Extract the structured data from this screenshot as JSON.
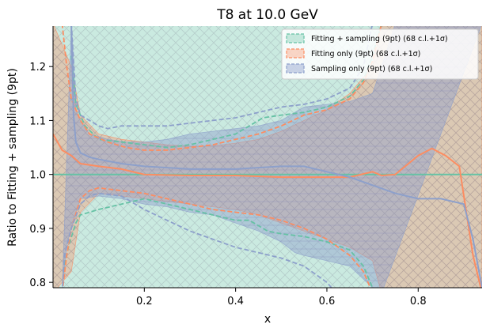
{
  "chart_data": {
    "type": "line",
    "title": "T8 at 10.0 GeV",
    "xlabel": "x",
    "ylabel": "Ratio to Fitting + sampling (9pt)",
    "xlim": [
      0.0,
      0.94
    ],
    "ylim": [
      0.79,
      1.275
    ],
    "xticks": [
      {
        "value": 0.2,
        "label": "0.2"
      },
      {
        "value": 0.4,
        "label": "0.4"
      },
      {
        "value": 0.6,
        "label": "0.6"
      },
      {
        "value": 0.8,
        "label": "0.8"
      }
    ],
    "yticks": [
      {
        "value": 0.8,
        "label": "0.8"
      },
      {
        "value": 0.9,
        "label": "0.9"
      },
      {
        "value": 1.0,
        "label": "1.0"
      },
      {
        "value": 1.1,
        "label": "1.1"
      },
      {
        "value": 1.2,
        "label": "1.2"
      }
    ],
    "grid": false,
    "legend_position": "top-right",
    "series": [
      {
        "name": "Fitting + sampling (9pt) (68 c.l.+1σ)",
        "color": "#66c2a5",
        "band_fill": "rgba(102,194,165,0.35)",
        "central": [
          [
            0.0,
            1.0
          ],
          [
            0.94,
            1.0
          ]
        ],
        "band_upper": [
          [
            0.0,
            1.28
          ],
          [
            0.94,
            1.28
          ]
        ],
        "band_lower": [
          [
            0.0,
            0.78
          ],
          [
            0.94,
            0.78
          ]
        ],
        "dashed_upper": [
          [
            0.04,
            1.22
          ],
          [
            0.05,
            1.13
          ],
          [
            0.07,
            1.09
          ],
          [
            0.1,
            1.065
          ],
          [
            0.15,
            1.06
          ],
          [
            0.2,
            1.055
          ],
          [
            0.25,
            1.05
          ],
          [
            0.3,
            1.055
          ],
          [
            0.35,
            1.065
          ],
          [
            0.4,
            1.075
          ],
          [
            0.43,
            1.09
          ],
          [
            0.46,
            1.105
          ],
          [
            0.5,
            1.11
          ],
          [
            0.55,
            1.115
          ],
          [
            0.6,
            1.125
          ],
          [
            0.65,
            1.145
          ],
          [
            0.68,
            1.175
          ],
          [
            0.7,
            1.22
          ],
          [
            0.72,
            1.28
          ]
        ],
        "dashed_lower": [
          [
            0.02,
            0.78
          ],
          [
            0.025,
            0.83
          ],
          [
            0.035,
            0.87
          ],
          [
            0.05,
            0.91
          ],
          [
            0.06,
            0.925
          ],
          [
            0.1,
            0.935
          ],
          [
            0.15,
            0.945
          ],
          [
            0.2,
            0.955
          ],
          [
            0.25,
            0.945
          ],
          [
            0.3,
            0.935
          ],
          [
            0.35,
            0.925
          ],
          [
            0.4,
            0.915
          ],
          [
            0.43,
            0.915
          ],
          [
            0.45,
            0.905
          ],
          [
            0.47,
            0.895
          ],
          [
            0.5,
            0.89
          ],
          [
            0.55,
            0.885
          ],
          [
            0.6,
            0.875
          ],
          [
            0.65,
            0.86
          ],
          [
            0.68,
            0.83
          ],
          [
            0.7,
            0.79
          ],
          [
            0.71,
            0.78
          ]
        ]
      },
      {
        "name": "Fitting only (9pt) (68 c.l.+1σ)",
        "color": "#fc8d62",
        "band_fill": "rgba(252,141,98,0.35)",
        "central": [
          [
            0.0,
            1.075
          ],
          [
            0.02,
            1.045
          ],
          [
            0.04,
            1.035
          ],
          [
            0.06,
            1.02
          ],
          [
            0.1,
            1.015
          ],
          [
            0.15,
            1.01
          ],
          [
            0.2,
            1.0
          ],
          [
            0.3,
            0.998
          ],
          [
            0.4,
            0.998
          ],
          [
            0.5,
            0.995
          ],
          [
            0.6,
            0.995
          ],
          [
            0.65,
            0.995
          ],
          [
            0.7,
            1.005
          ],
          [
            0.72,
            0.998
          ],
          [
            0.75,
            1.0
          ],
          [
            0.8,
            1.035
          ],
          [
            0.83,
            1.048
          ],
          [
            0.86,
            1.035
          ],
          [
            0.89,
            1.015
          ],
          [
            0.92,
            0.85
          ],
          [
            0.94,
            0.78
          ]
        ],
        "band_upper": [
          [
            0.0,
            1.28
          ],
          [
            0.04,
            1.2
          ],
          [
            0.06,
            1.11
          ],
          [
            0.1,
            1.075
          ],
          [
            0.15,
            1.065
          ],
          [
            0.2,
            1.06
          ],
          [
            0.25,
            1.055
          ],
          [
            0.3,
            1.052
          ],
          [
            0.35,
            1.053
          ],
          [
            0.4,
            1.058
          ],
          [
            0.45,
            1.065
          ],
          [
            0.5,
            1.08
          ],
          [
            0.55,
            1.1
          ],
          [
            0.6,
            1.12
          ],
          [
            0.65,
            1.15
          ],
          [
            0.7,
            1.2
          ],
          [
            0.72,
            1.28
          ],
          [
            0.94,
            1.28
          ]
        ],
        "band_lower": [
          [
            0.0,
            0.78
          ],
          [
            0.04,
            0.82
          ],
          [
            0.06,
            0.93
          ],
          [
            0.1,
            0.965
          ],
          [
            0.15,
            0.96
          ],
          [
            0.2,
            0.955
          ],
          [
            0.25,
            0.95
          ],
          [
            0.3,
            0.945
          ],
          [
            0.35,
            0.94
          ],
          [
            0.4,
            0.935
          ],
          [
            0.45,
            0.925
          ],
          [
            0.5,
            0.91
          ],
          [
            0.55,
            0.895
          ],
          [
            0.6,
            0.88
          ],
          [
            0.65,
            0.865
          ],
          [
            0.7,
            0.84
          ],
          [
            0.72,
            0.78
          ],
          [
            0.94,
            0.78
          ]
        ],
        "dashed_upper": [
          [
            0.02,
            1.28
          ],
          [
            0.03,
            1.2
          ],
          [
            0.04,
            1.14
          ],
          [
            0.06,
            1.1
          ],
          [
            0.08,
            1.075
          ],
          [
            0.12,
            1.06
          ],
          [
            0.16,
            1.05
          ],
          [
            0.2,
            1.045
          ],
          [
            0.25,
            1.045
          ],
          [
            0.3,
            1.05
          ],
          [
            0.35,
            1.055
          ],
          [
            0.4,
            1.065
          ],
          [
            0.45,
            1.075
          ],
          [
            0.5,
            1.09
          ],
          [
            0.55,
            1.11
          ],
          [
            0.6,
            1.12
          ],
          [
            0.65,
            1.14
          ],
          [
            0.68,
            1.17
          ],
          [
            0.7,
            1.21
          ],
          [
            0.72,
            1.28
          ]
        ],
        "dashed_lower": [
          [
            0.02,
            0.78
          ],
          [
            0.03,
            0.85
          ],
          [
            0.04,
            0.9
          ],
          [
            0.06,
            0.955
          ],
          [
            0.08,
            0.97
          ],
          [
            0.1,
            0.975
          ],
          [
            0.15,
            0.97
          ],
          [
            0.2,
            0.965
          ],
          [
            0.25,
            0.955
          ],
          [
            0.3,
            0.945
          ],
          [
            0.35,
            0.935
          ],
          [
            0.4,
            0.93
          ],
          [
            0.45,
            0.925
          ],
          [
            0.5,
            0.915
          ],
          [
            0.55,
            0.9
          ],
          [
            0.6,
            0.88
          ],
          [
            0.65,
            0.85
          ],
          [
            0.68,
            0.82
          ],
          [
            0.7,
            0.78
          ]
        ]
      },
      {
        "name": "Sampling only (9pt) (68 c.l.+1σ)",
        "color": "#8da0cb",
        "band_fill": "rgba(141,160,203,0.45)",
        "central": [
          [
            0.04,
            1.275
          ],
          [
            0.045,
            1.11
          ],
          [
            0.05,
            1.06
          ],
          [
            0.06,
            1.04
          ],
          [
            0.08,
            1.032
          ],
          [
            0.1,
            1.028
          ],
          [
            0.15,
            1.02
          ],
          [
            0.2,
            1.015
          ],
          [
            0.3,
            1.01
          ],
          [
            0.4,
            1.01
          ],
          [
            0.5,
            1.015
          ],
          [
            0.55,
            1.015
          ],
          [
            0.6,
            1.005
          ],
          [
            0.65,
            0.995
          ],
          [
            0.7,
            0.98
          ],
          [
            0.75,
            0.965
          ],
          [
            0.8,
            0.955
          ],
          [
            0.85,
            0.955
          ],
          [
            0.9,
            0.945
          ],
          [
            0.92,
            0.88
          ],
          [
            0.94,
            0.79
          ]
        ],
        "band_upper": [
          [
            0.04,
            1.28
          ],
          [
            0.05,
            1.12
          ],
          [
            0.06,
            1.1
          ],
          [
            0.08,
            1.075
          ],
          [
            0.12,
            1.065
          ],
          [
            0.16,
            1.06
          ],
          [
            0.2,
            1.06
          ],
          [
            0.25,
            1.065
          ],
          [
            0.3,
            1.075
          ],
          [
            0.35,
            1.08
          ],
          [
            0.4,
            1.085
          ],
          [
            0.45,
            1.09
          ],
          [
            0.5,
            1.1
          ],
          [
            0.55,
            1.125
          ],
          [
            0.6,
            1.13
          ],
          [
            0.65,
            1.135
          ],
          [
            0.7,
            1.15
          ],
          [
            0.72,
            1.2
          ],
          [
            0.75,
            1.28
          ],
          [
            0.94,
            1.28
          ]
        ],
        "band_lower": [
          [
            0.02,
            0.78
          ],
          [
            0.03,
            0.87
          ],
          [
            0.05,
            0.93
          ],
          [
            0.06,
            0.955
          ],
          [
            0.1,
            0.96
          ],
          [
            0.15,
            0.955
          ],
          [
            0.2,
            0.945
          ],
          [
            0.25,
            0.94
          ],
          [
            0.3,
            0.93
          ],
          [
            0.35,
            0.925
          ],
          [
            0.4,
            0.91
          ],
          [
            0.45,
            0.895
          ],
          [
            0.5,
            0.875
          ],
          [
            0.53,
            0.855
          ],
          [
            0.55,
            0.85
          ],
          [
            0.6,
            0.84
          ],
          [
            0.65,
            0.83
          ],
          [
            0.7,
            0.79
          ],
          [
            0.72,
            0.78
          ]
        ],
        "dashed_upper": [
          [
            0.04,
            1.28
          ],
          [
            0.05,
            1.14
          ],
          [
            0.06,
            1.11
          ],
          [
            0.08,
            1.1
          ],
          [
            0.1,
            1.09
          ],
          [
            0.12,
            1.085
          ],
          [
            0.15,
            1.09
          ],
          [
            0.2,
            1.09
          ],
          [
            0.25,
            1.09
          ],
          [
            0.3,
            1.095
          ],
          [
            0.35,
            1.1
          ],
          [
            0.4,
            1.105
          ],
          [
            0.45,
            1.115
          ],
          [
            0.5,
            1.125
          ],
          [
            0.55,
            1.13
          ],
          [
            0.6,
            1.14
          ],
          [
            0.65,
            1.16
          ],
          [
            0.68,
            1.2
          ],
          [
            0.7,
            1.28
          ]
        ],
        "dashed_lower": [
          [
            0.02,
            0.78
          ],
          [
            0.025,
            0.85
          ],
          [
            0.04,
            0.9
          ],
          [
            0.06,
            0.945
          ],
          [
            0.08,
            0.96
          ],
          [
            0.1,
            0.965
          ],
          [
            0.15,
            0.96
          ],
          [
            0.2,
            0.935
          ],
          [
            0.25,
            0.915
          ],
          [
            0.3,
            0.895
          ],
          [
            0.35,
            0.88
          ],
          [
            0.4,
            0.865
          ],
          [
            0.45,
            0.855
          ],
          [
            0.5,
            0.845
          ],
          [
            0.55,
            0.83
          ],
          [
            0.6,
            0.8
          ],
          [
            0.62,
            0.78
          ]
        ]
      }
    ]
  }
}
